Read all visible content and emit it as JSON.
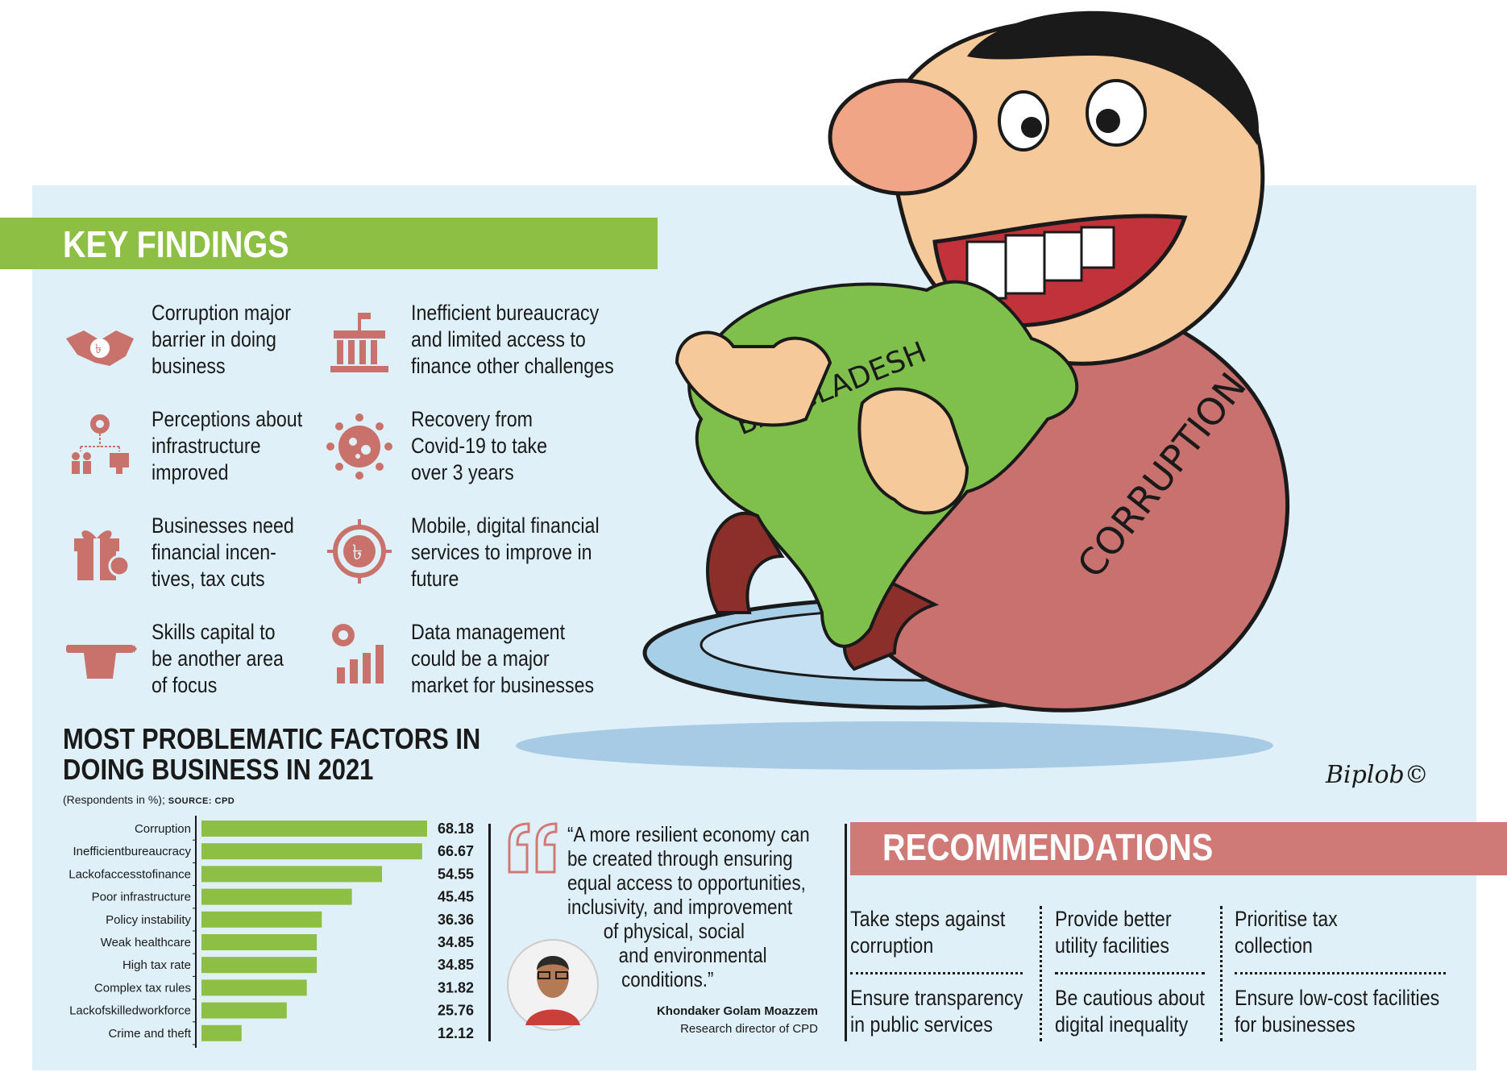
{
  "key_findings": {
    "title": "KEY FINDINGS",
    "items": [
      {
        "icon": "handshake-icon",
        "lines": [
          "Corruption major",
          "barrier in doing",
          "business"
        ]
      },
      {
        "icon": "government-building-icon",
        "lines": [
          "Inefficient bureaucracy",
          "and limited access to",
          "finance other challenges"
        ]
      },
      {
        "icon": "infrastructure-network-icon",
        "lines": [
          "Perceptions about",
          "infrastructure",
          "improved"
        ]
      },
      {
        "icon": "virus-icon",
        "lines": [
          "Recovery from",
          "Covid-19 to take",
          "over 3 years"
        ]
      },
      {
        "icon": "gift-discount-icon",
        "lines": [
          "Businesses need",
          "financial incen-",
          "tives, tax cuts"
        ]
      },
      {
        "icon": "taka-chip-icon",
        "lines": [
          "Mobile, digital financial",
          "services to improve in",
          "future"
        ]
      },
      {
        "icon": "hand-pen-icon",
        "lines": [
          "Skills capital to",
          "be another area",
          "of focus"
        ]
      },
      {
        "icon": "gear-bar-chart-icon",
        "lines": [
          "Data management",
          "could be a major",
          "market for businesses"
        ]
      }
    ]
  },
  "chart": {
    "title_lines": [
      "MOST PROBLEMATIC FACTORS IN",
      "DOING BUSINESS IN 2021"
    ],
    "subtitle": "(Respondents in %);",
    "source": "SOURCE: CPD"
  },
  "chart_data": {
    "type": "bar",
    "orientation": "horizontal",
    "title": "MOST PROBLEMATIC FACTORS IN DOING BUSINESS IN 2021",
    "unit": "Respondents in %",
    "categories": [
      "Corruption",
      "Inefficientbureaucracy",
      "Lackofaccesstofinance",
      "Poor infrastructure",
      "Policy instability",
      "Weak healthcare",
      "High tax rate",
      "Complex tax rules",
      "Lackofskilledworkforce",
      "Crime and theft"
    ],
    "values": [
      68.18,
      66.67,
      54.55,
      45.45,
      36.36,
      34.85,
      34.85,
      31.82,
      25.76,
      12.12
    ],
    "value_labels": [
      "68.18",
      "66.67",
      "54.55",
      "45.45",
      "36.36",
      "34.85",
      "34.85",
      "31.82",
      "25.76",
      "12.12"
    ],
    "xlim": [
      0,
      68.18
    ],
    "bar_color": "#8dbf44",
    "grid": false,
    "legend": "none"
  },
  "quote": {
    "lines": [
      "“A more resilient economy can",
      "be created through ensuring",
      "equal access to opportunities,",
      "inclusivity, and improvement",
      "of physical, social",
      "and environmental",
      "conditions.”"
    ],
    "name": "Khondaker Golam Moazzem",
    "role": "Research director of CPD"
  },
  "recommendations": {
    "title": "RECOMMENDATIONS",
    "items": [
      [
        "Take steps against",
        "corruption"
      ],
      [
        "Provide better",
        "utility facilities"
      ],
      [
        "Prioritise tax",
        "collection"
      ],
      [
        "Ensure transparency",
        "in public services"
      ],
      [
        "Be cautious about",
        "digital inequality"
      ],
      [
        "Ensure low-cost facilities",
        "for businesses"
      ]
    ]
  },
  "cartoon": {
    "map_label": "BANGLADESH",
    "suit_label": "CORRUPTION",
    "signature": "Biplob©"
  },
  "colors": {
    "panel": "#dff0f9",
    "green": "#8dbf44",
    "rose": "#cf7a76",
    "icon": "#c9726c"
  }
}
